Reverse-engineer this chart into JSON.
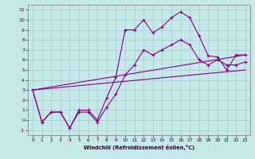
{
  "xlabel": "Windchill (Refroidissement éolien,°C)",
  "background_color": "#c5e8e8",
  "grid_color": "#a8c8c8",
  "line_color": "#880088",
  "xlim": [
    -0.5,
    23.5
  ],
  "ylim": [
    -1.5,
    11.5
  ],
  "xticks": [
    0,
    1,
    2,
    3,
    4,
    5,
    6,
    7,
    8,
    9,
    10,
    11,
    12,
    13,
    14,
    15,
    16,
    17,
    18,
    19,
    20,
    21,
    22,
    23
  ],
  "yticks": [
    -1,
    0,
    1,
    2,
    3,
    4,
    5,
    6,
    7,
    8,
    9,
    10,
    11
  ],
  "line1_x": [
    0,
    1,
    2,
    3,
    4,
    5,
    6,
    7,
    8,
    9,
    10,
    11,
    12,
    13,
    14,
    15,
    16,
    17,
    18,
    19,
    20,
    21,
    22,
    23
  ],
  "line1_y": [
    3.0,
    -0.2,
    0.8,
    0.8,
    -0.8,
    1.0,
    1.0,
    0.0,
    2.2,
    4.3,
    9.0,
    9.0,
    10.0,
    8.7,
    9.3,
    10.2,
    10.8,
    10.2,
    8.4,
    6.4,
    6.3,
    5.0,
    6.5,
    6.5
  ],
  "line2_x": [
    0,
    1,
    2,
    3,
    4,
    5,
    6,
    7,
    8,
    9,
    10,
    11,
    12,
    13,
    14,
    15,
    16,
    17,
    18,
    19,
    20,
    21,
    22,
    23
  ],
  "line2_y": [
    3.0,
    -0.2,
    0.8,
    0.8,
    -0.8,
    0.8,
    0.8,
    -0.2,
    1.3,
    2.6,
    4.5,
    5.5,
    7.0,
    6.5,
    7.0,
    7.5,
    8.0,
    7.5,
    6.0,
    5.5,
    6.0,
    5.5,
    5.5,
    5.8
  ],
  "line3_x": [
    0,
    23
  ],
  "line3_y": [
    3.0,
    5.0
  ],
  "line4_x": [
    0,
    23
  ],
  "line4_y": [
    3.0,
    6.5
  ]
}
